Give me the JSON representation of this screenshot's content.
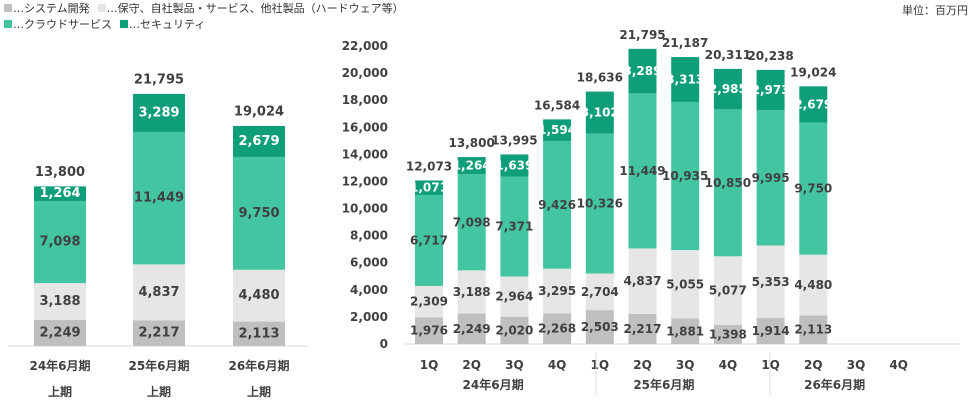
{
  "colors": {
    "system": "#bfbfbf",
    "maintenance": "#e6e6e6",
    "cloud": "#44c5a2",
    "security": "#0f9e7a",
    "text": "#404040"
  },
  "legend": {
    "items": [
      {
        "label": "…システム開発",
        "color": "#bfbfbf"
      },
      {
        "label": "…保守、自社製品・サービス、他社製品（ハードウェア等）",
        "color": "#e6e6e6"
      },
      {
        "label": "…クラウドサービス",
        "color": "#44c5a2"
      },
      {
        "label": "…セキュリティ",
        "color": "#0f9e7a"
      }
    ]
  },
  "unit_label": "単位：百万円",
  "chart_data": [
    {
      "type": "bar",
      "stacked": true,
      "categories": [
        "24年6月期",
        "25年6月期",
        "26年6月期"
      ],
      "sublabels": [
        "上期",
        "上期",
        "上期"
      ],
      "series": [
        {
          "name": "…システム開発",
          "values": [
            2249,
            2217,
            2113
          ]
        },
        {
          "name": "…保守、自社製品・サービス、他社製品（ハードウェア等）",
          "values": [
            3188,
            4837,
            4480
          ]
        },
        {
          "name": "…クラウドサービス",
          "values": [
            7098,
            11449,
            9750
          ]
        },
        {
          "name": "…セキュリティ",
          "values": [
            1264,
            3289,
            2679
          ]
        }
      ],
      "totals": [
        13800,
        21795,
        19024
      ],
      "ylim": [
        0,
        22000
      ]
    },
    {
      "type": "bar",
      "stacked": true,
      "categories": [
        "1Q",
        "2Q",
        "3Q",
        "4Q",
        "1Q",
        "2Q",
        "3Q",
        "4Q",
        "1Q",
        "2Q",
        "3Q",
        "4Q"
      ],
      "groups": [
        "24年6月期",
        "25年6月期",
        "26年6月期"
      ],
      "series": [
        {
          "name": "…システム開発",
          "values": [
            1976,
            2249,
            2020,
            2268,
            2503,
            2217,
            1881,
            1398,
            1914,
            2113,
            null,
            null
          ]
        },
        {
          "name": "…保守、自社製品・サービス、他社製品（ハードウェア等）",
          "values": [
            2309,
            3188,
            2964,
            3295,
            2704,
            4837,
            5055,
            5077,
            5353,
            4480,
            null,
            null
          ]
        },
        {
          "name": "…クラウドサービス",
          "values": [
            6717,
            7098,
            7371,
            9426,
            10326,
            11449,
            10935,
            10850,
            9995,
            9750,
            null,
            null
          ]
        },
        {
          "name": "…セキュリティ",
          "values": [
            1071,
            1264,
            1639,
            1594,
            3102,
            3289,
            3313,
            2985,
            2973,
            2679,
            null,
            null
          ]
        }
      ],
      "totals": [
        12073,
        13800,
        13995,
        16584,
        18636,
        21795,
        21187,
        20311,
        20238,
        19024,
        null,
        null
      ],
      "yticks": [
        "0",
        "2,000",
        "4,000",
        "6,000",
        "8,000",
        "10,000",
        "12,000",
        "14,000",
        "16,000",
        "18,000",
        "20,000",
        "22,000"
      ],
      "ylim": [
        0,
        22000
      ]
    }
  ]
}
